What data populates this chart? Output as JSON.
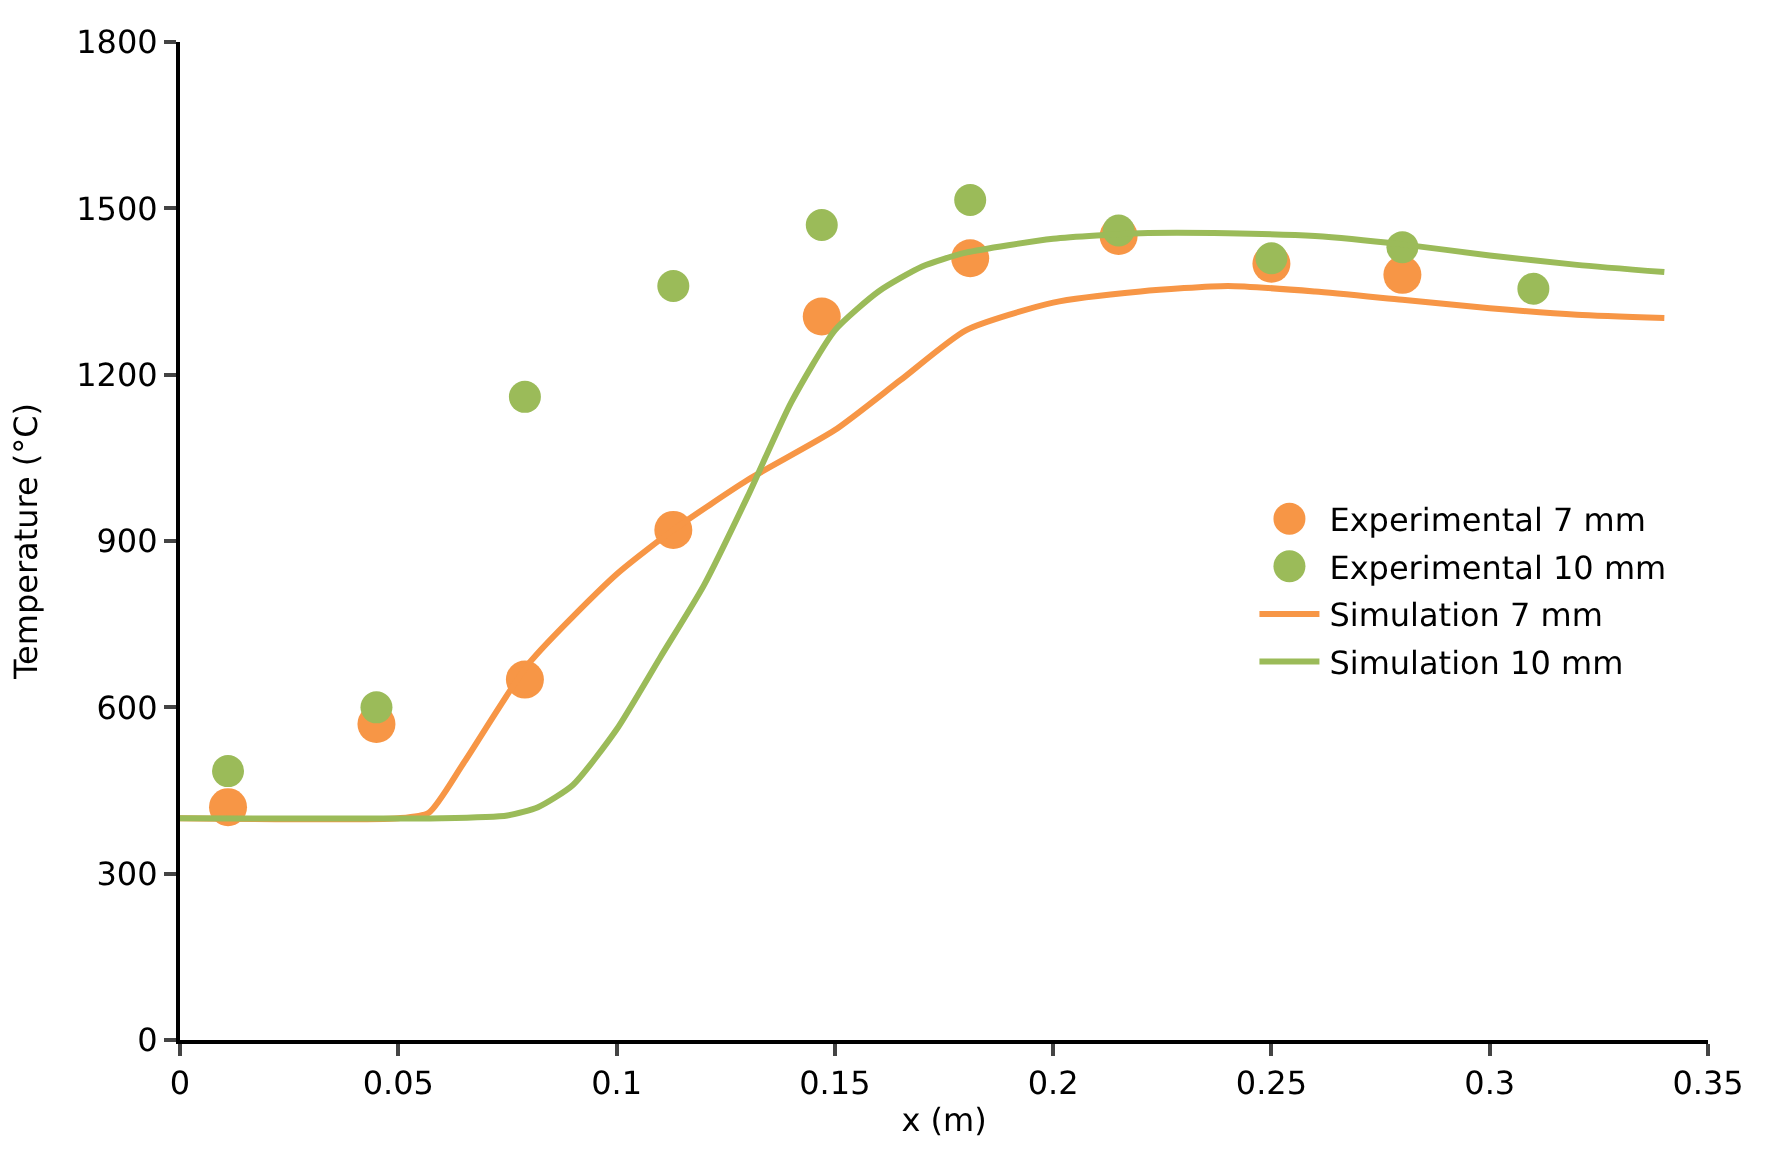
{
  "chart_data": {
    "type": "scatter",
    "xlabel": "x (m)",
    "ylabel": "Temperature (°C)",
    "xlim": [
      0,
      0.35
    ],
    "xticks": [
      0,
      0.05,
      0.1,
      0.15,
      0.2,
      0.25,
      0.3,
      0.35
    ],
    "ylim": [
      0,
      1800
    ],
    "yticks": [
      0,
      300,
      600,
      900,
      1200,
      1500,
      1800
    ],
    "legend": "right",
    "series": [
      {
        "name": "Experimental 7 mm",
        "marker": "circle",
        "color": "#f79646",
        "x": [
          0.011,
          0.045,
          0.079,
          0.113,
          0.147,
          0.181,
          0.215,
          0.25,
          0.28
        ],
        "values": [
          420,
          570,
          650,
          920,
          1305,
          1410,
          1450,
          1400,
          1380
        ]
      },
      {
        "name": "Experimental 10 mm",
        "marker": "circle",
        "color": "#9bbb59",
        "x": [
          0.011,
          0.045,
          0.079,
          0.113,
          0.147,
          0.181,
          0.215,
          0.25,
          0.28,
          0.31
        ],
        "values": [
          485,
          600,
          1160,
          1360,
          1470,
          1515,
          1460,
          1410,
          1430,
          1355
        ]
      },
      {
        "name": "Simulation 7 mm",
        "type": "line",
        "color": "#f79646",
        "x": [
          0,
          0.05,
          0.057,
          0.065,
          0.08,
          0.1,
          0.113,
          0.13,
          0.15,
          0.165,
          0.18,
          0.2,
          0.22,
          0.24,
          0.26,
          0.28,
          0.3,
          0.32,
          0.34
        ],
        "values": [
          400,
          400,
          410,
          500,
          680,
          840,
          920,
          1010,
          1100,
          1190,
          1280,
          1330,
          1350,
          1360,
          1350,
          1335,
          1320,
          1308,
          1302
        ]
      },
      {
        "name": "Simulation 10 mm",
        "type": "line",
        "color": "#9bbb59",
        "x": [
          0,
          0.06,
          0.075,
          0.082,
          0.09,
          0.1,
          0.11,
          0.12,
          0.13,
          0.14,
          0.15,
          0.16,
          0.17,
          0.18,
          0.2,
          0.22,
          0.24,
          0.26,
          0.28,
          0.3,
          0.32,
          0.34
        ],
        "values": [
          400,
          400,
          405,
          420,
          460,
          560,
          690,
          820,
          980,
          1150,
          1280,
          1350,
          1395,
          1420,
          1445,
          1455,
          1455,
          1450,
          1435,
          1415,
          1398,
          1385
        ]
      }
    ]
  }
}
